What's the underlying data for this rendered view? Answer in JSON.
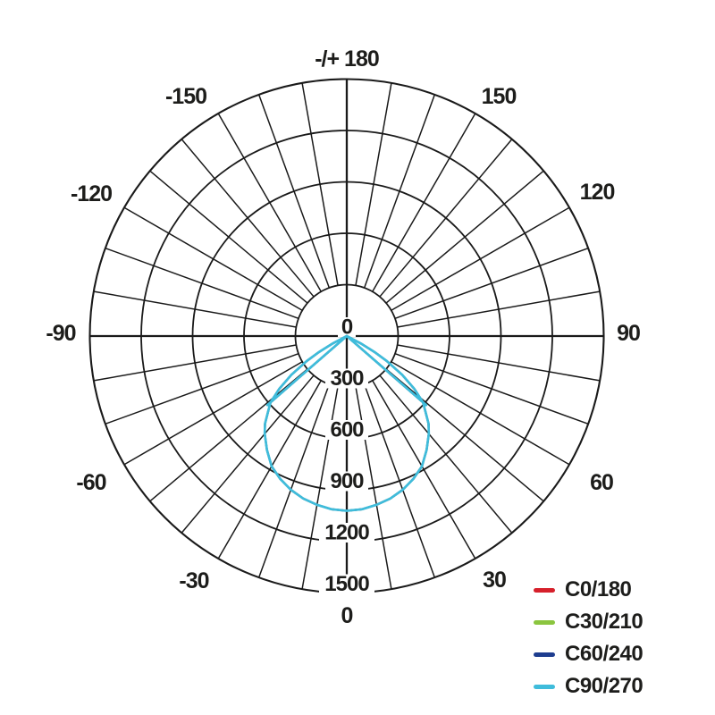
{
  "page": {
    "background": "#ffffff"
  },
  "chart_data": {
    "type": "polar",
    "subtype": "photometric-luminous-intensity-curve",
    "title": "",
    "angle_unit": "deg",
    "angle_zero": "bottom",
    "angle_labels": [
      {
        "deg": 180,
        "label": "-/+ 180"
      },
      {
        "deg": -150,
        "label": "-150"
      },
      {
        "deg": -120,
        "label": "-120"
      },
      {
        "deg": -90,
        "label": "-90"
      },
      {
        "deg": -60,
        "label": "-60"
      },
      {
        "deg": -30,
        "label": "-30"
      },
      {
        "deg": 0,
        "label": "0"
      },
      {
        "deg": 30,
        "label": "30"
      },
      {
        "deg": 60,
        "label": "60"
      },
      {
        "deg": 90,
        "label": "90"
      },
      {
        "deg": 120,
        "label": "120"
      },
      {
        "deg": 150,
        "label": "150"
      }
    ],
    "radial_ticks": [
      0,
      300,
      600,
      900,
      1200,
      1500
    ],
    "radial_max": 1500,
    "grid": {
      "spoke_step_deg": 10,
      "rings": 5,
      "color": "#1a1a1a"
    },
    "legend_position": "bottom-right",
    "series": [
      {
        "name": "C0/180",
        "color": "#d6202b"
      },
      {
        "name": "C30/210",
        "color": "#8bc53f"
      },
      {
        "name": "C60/240",
        "color": "#1e3d8f"
      },
      {
        "name": "C90/270",
        "color": "#3fbcdb"
      }
    ],
    "profile_deg_cd": [
      [
        -64,
        0
      ],
      [
        -62,
        95
      ],
      [
        -60,
        190
      ],
      [
        -58,
        275
      ],
      [
        -55,
        395
      ],
      [
        -52,
        500
      ],
      [
        -49,
        590
      ],
      [
        -46,
        640
      ],
      [
        -43,
        700
      ],
      [
        -40,
        745
      ],
      [
        -35,
        812
      ],
      [
        -30,
        878
      ],
      [
        -25,
        920
      ],
      [
        -20,
        955
      ],
      [
        -15,
        982
      ],
      [
        -10,
        1000
      ],
      [
        -5,
        1015
      ],
      [
        0,
        1020
      ],
      [
        5,
        1015
      ],
      [
        10,
        1000
      ],
      [
        15,
        982
      ],
      [
        20,
        955
      ],
      [
        25,
        920
      ],
      [
        30,
        878
      ],
      [
        35,
        812
      ],
      [
        40,
        745
      ],
      [
        43,
        700
      ],
      [
        46,
        640
      ],
      [
        49,
        590
      ],
      [
        52,
        500
      ],
      [
        55,
        395
      ],
      [
        58,
        275
      ],
      [
        60,
        190
      ],
      [
        62,
        95
      ],
      [
        64,
        0
      ]
    ],
    "cutoff_rays_deg_cd": [
      [
        49,
        614
      ],
      [
        -49,
        614
      ]
    ]
  }
}
